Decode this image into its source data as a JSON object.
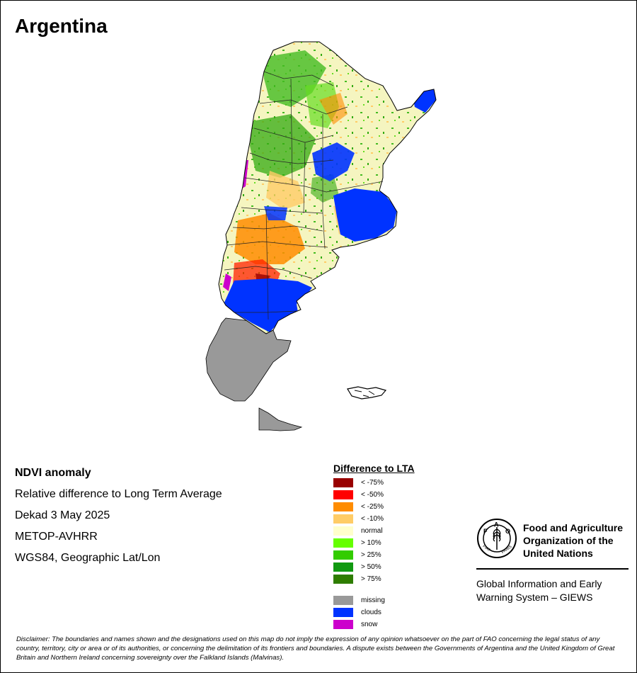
{
  "map": {
    "title": "Argentina"
  },
  "info": {
    "lines": [
      "NDVI anomaly",
      "Relative difference to Long Term Average",
      "Dekad 3 May 2025",
      "METOP-AVHRR",
      "WGS84, Geographic Lat/Lon"
    ]
  },
  "legend": {
    "title": "Difference to LTA",
    "items": [
      {
        "label": "< -75%",
        "color": "#990000"
      },
      {
        "label": "< -50%",
        "color": "#ff0000"
      },
      {
        "label": "< -25%",
        "color": "#ff8c00"
      },
      {
        "label": "< -10%",
        "color": "#ffcc66"
      },
      {
        "label": "normal",
        "color": "#ffffcc"
      },
      {
        "label": "> 10%",
        "color": "#66ff00"
      },
      {
        "label": "> 25%",
        "color": "#33cc00"
      },
      {
        "label": "> 50%",
        "color": "#119911"
      },
      {
        "label": "> 75%",
        "color": "#2e7d00"
      }
    ],
    "extra": [
      {
        "label": "missing",
        "color": "#999999"
      },
      {
        "label": "clouds",
        "color": "#0033ff"
      },
      {
        "label": "snow",
        "color": "#cc00cc"
      }
    ]
  },
  "org": {
    "name_lines": [
      "Food and Agriculture",
      "Organization of the",
      "United Nations"
    ],
    "logo_text": "FAO",
    "logo_motto": "FIAT PANIS",
    "giews_lines": [
      "Global Information and Early",
      "Warning System – GIEWS"
    ]
  },
  "disclaimer": "Disclaimer: The boundaries and names shown and the designations used on this map do not imply the expression of any opinion whatsoever on the part of FAO concerning the legal status of any country, territory, city or area or of its authorities, or concerning the delimitation of its frontiers and boundaries. A dispute exists between the Governments of Argentina and the United Kingdom of Great Britain and Northern Ireland concerning sovereignty over the Falkland Islands (Malvinas).",
  "colors": {
    "normal": "#f5f5c0",
    "missing": "#999999",
    "clouds": "#0033ff",
    "snow": "#cc00cc",
    "green": "#44bb22",
    "orange": "#ff8c00",
    "light_orange": "#ffcc66",
    "red": "#ff2200"
  }
}
